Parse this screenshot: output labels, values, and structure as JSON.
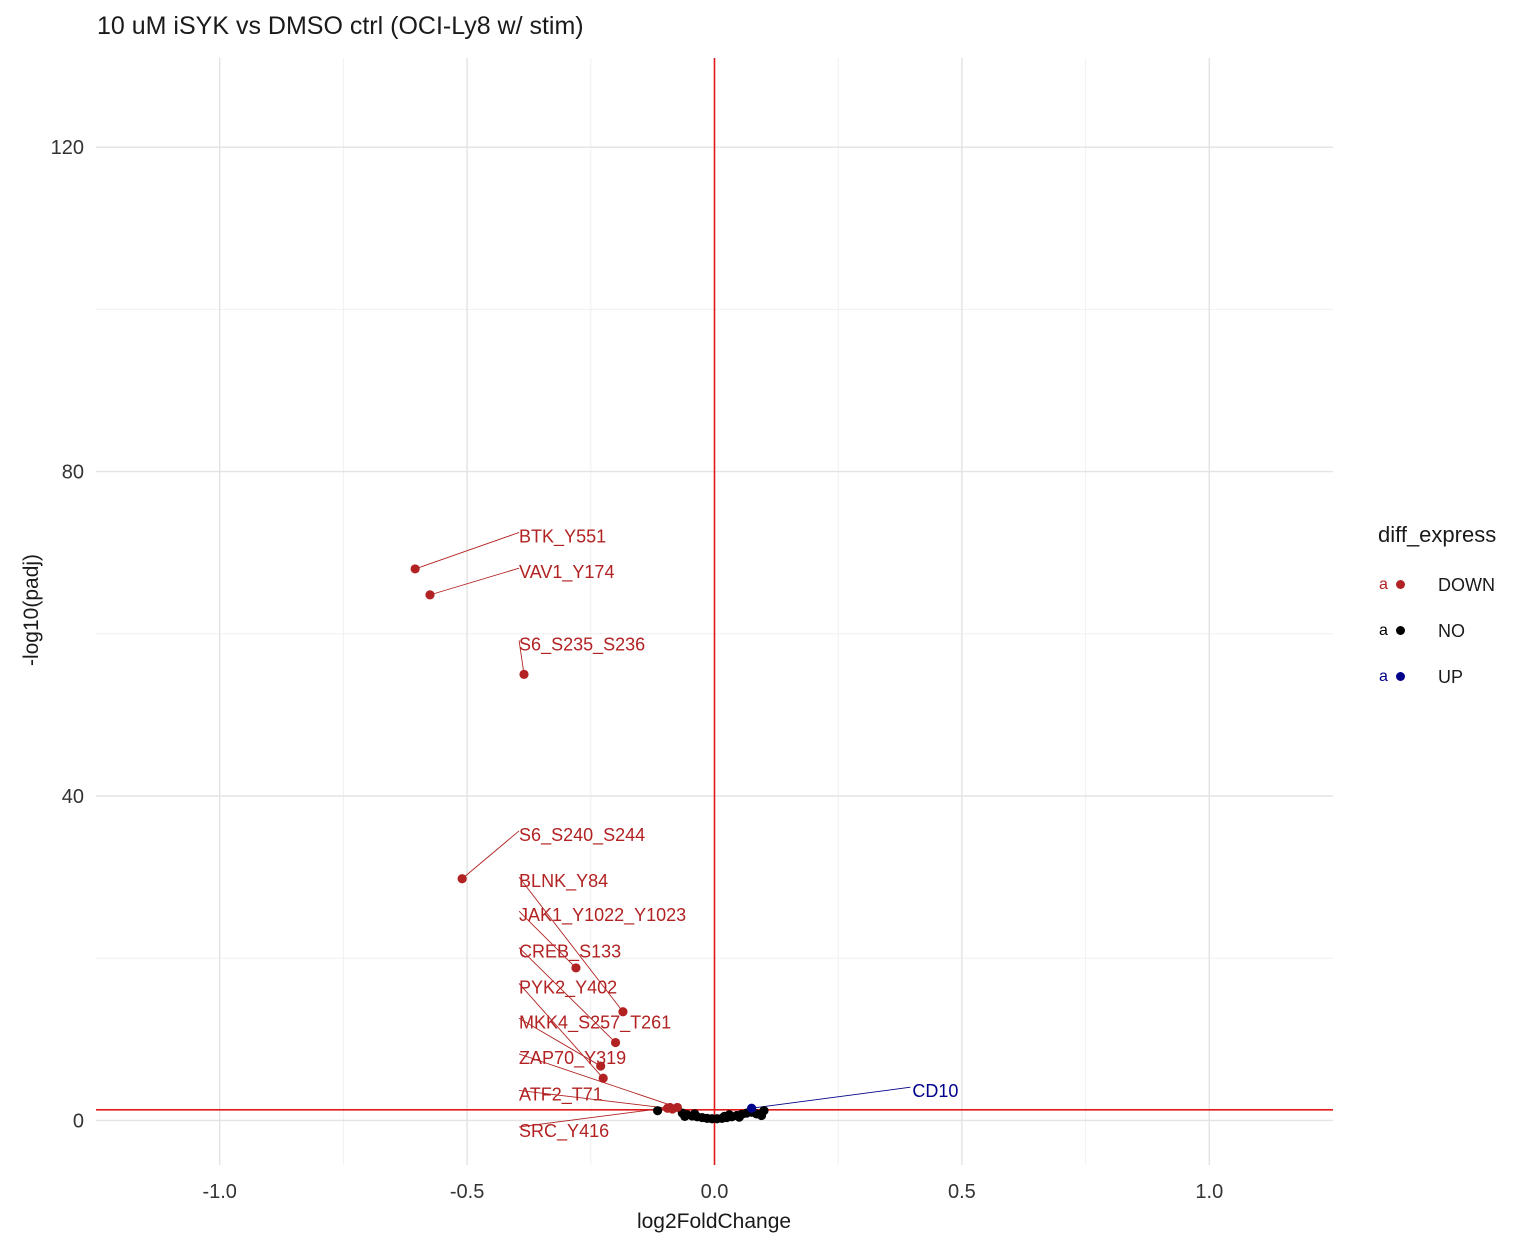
{
  "chart_data": {
    "type": "scatter",
    "title": "10 uM iSYK vs DMSO ctrl (OCI-Ly8 w/ stim)",
    "xlabel": "log2FoldChange",
    "ylabel": "-log10(padj)",
    "xlim": [
      -1.25,
      1.25
    ],
    "ylim": [
      -5.5,
      131
    ],
    "xticks": [
      -1.0,
      -0.5,
      0.0,
      0.5,
      1.0
    ],
    "xtick_labels": [
      "-1.0",
      "-0.5",
      "0.0",
      "0.5",
      "1.0"
    ],
    "yticks": [
      0,
      40,
      80,
      120
    ],
    "ytick_labels": [
      "0",
      "40",
      "80",
      "120"
    ],
    "grid": true,
    "vline_x": 0,
    "hline_y": 1.3,
    "reference_line_color": "#e31a1c",
    "legend": {
      "title": "diff_express",
      "placement": "right",
      "key_glyph": "a",
      "entries": [
        {
          "name": "DOWN",
          "color": "#b22222"
        },
        {
          "name": "NO",
          "color": "#000000"
        },
        {
          "name": "UP",
          "color": "#00008b"
        }
      ]
    },
    "series": [
      {
        "name": "DOWN",
        "color": "#b22222",
        "points": [
          {
            "x": -0.605,
            "y": 68.0,
            "label": "BTK_Y551",
            "label_x": -0.395,
            "label_y": 72.0
          },
          {
            "x": -0.575,
            "y": 64.8,
            "label": "VAV1_Y174",
            "label_x": -0.395,
            "label_y": 67.6
          },
          {
            "x": -0.385,
            "y": 55.0,
            "label": "S6_S235_S236",
            "label_x": -0.395,
            "label_y": 58.7
          },
          {
            "x": -0.51,
            "y": 29.8,
            "label": "S6_S240_S244",
            "label_x": -0.395,
            "label_y": 35.2
          },
          {
            "x": -0.185,
            "y": 13.4,
            "label": "BLNK_Y84",
            "label_x": -0.395,
            "label_y": 29.5
          },
          {
            "x": -0.28,
            "y": 18.8,
            "label": "JAK1_Y1022_Y1023",
            "label_x": -0.395,
            "label_y": 25.3
          },
          {
            "x": -0.2,
            "y": 9.6,
            "label": "CREB_S133",
            "label_x": -0.395,
            "label_y": 20.8
          },
          {
            "x": -0.225,
            "y": 5.2,
            "label": "PYK2_Y402",
            "label_x": -0.395,
            "label_y": 16.4
          },
          {
            "x": -0.23,
            "y": 6.7,
            "label": "MKK4_S257_T261",
            "label_x": -0.395,
            "label_y": 12.1
          },
          {
            "x": -0.075,
            "y": 1.6,
            "label": "ZAP70_Y319",
            "label_x": -0.395,
            "label_y": 7.7
          },
          {
            "x": -0.095,
            "y": 1.5,
            "label": "ATF2_T71",
            "label_x": -0.395,
            "label_y": 3.2
          },
          {
            "x": -0.09,
            "y": 1.6,
            "label": "SRC_Y416",
            "label_x": -0.395,
            "label_y": -1.3
          },
          {
            "x": -0.085,
            "y": 1.4
          }
        ]
      },
      {
        "name": "NO",
        "color": "#000000",
        "points": [
          {
            "x": -0.115,
            "y": 1.2
          },
          {
            "x": -0.065,
            "y": 0.9
          },
          {
            "x": -0.055,
            "y": 0.7
          },
          {
            "x": -0.045,
            "y": 0.55
          },
          {
            "x": -0.035,
            "y": 0.45
          },
          {
            "x": -0.025,
            "y": 0.35
          },
          {
            "x": -0.015,
            "y": 0.25
          },
          {
            "x": -0.005,
            "y": 0.2
          },
          {
            "x": 0.005,
            "y": 0.2
          },
          {
            "x": 0.015,
            "y": 0.25
          },
          {
            "x": 0.025,
            "y": 0.35
          },
          {
            "x": 0.035,
            "y": 0.45
          },
          {
            "x": 0.045,
            "y": 0.6
          },
          {
            "x": 0.055,
            "y": 0.75
          },
          {
            "x": 0.065,
            "y": 0.9
          },
          {
            "x": 0.075,
            "y": 1.0
          },
          {
            "x": 0.085,
            "y": 0.8
          },
          {
            "x": 0.095,
            "y": 0.6
          },
          {
            "x": 0.1,
            "y": 1.2
          },
          {
            "x": -0.06,
            "y": 0.5
          },
          {
            "x": 0.03,
            "y": 0.7
          },
          {
            "x": 0.05,
            "y": 0.4
          },
          {
            "x": -0.04,
            "y": 0.8
          },
          {
            "x": 0.02,
            "y": 0.5
          }
        ]
      },
      {
        "name": "UP",
        "color": "#00008b",
        "points": [
          {
            "x": 0.075,
            "y": 1.5,
            "label": "CD10",
            "label_x": 0.4,
            "label_y": 3.6
          }
        ]
      }
    ]
  }
}
